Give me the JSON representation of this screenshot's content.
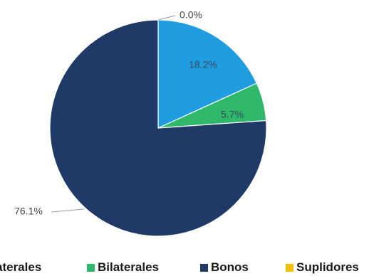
{
  "chart_data": {
    "type": "pie",
    "categories": [
      "Multilaterales",
      "Bilaterales",
      "Bonos",
      "Suplidores"
    ],
    "values": [
      18.2,
      5.7,
      76.1,
      0.0
    ],
    "data_labels": [
      "18.2%",
      "5.7%",
      "76.1%",
      "0.0%"
    ],
    "colors": [
      "#1f9de0",
      "#2fb86a",
      "#1f3a66",
      "#f2c000"
    ],
    "legend_visible_text": [
      "aterales",
      "Bilaterales",
      "Bonos",
      "Suplidores"
    ],
    "legend_placement": "bottom",
    "title": ""
  }
}
